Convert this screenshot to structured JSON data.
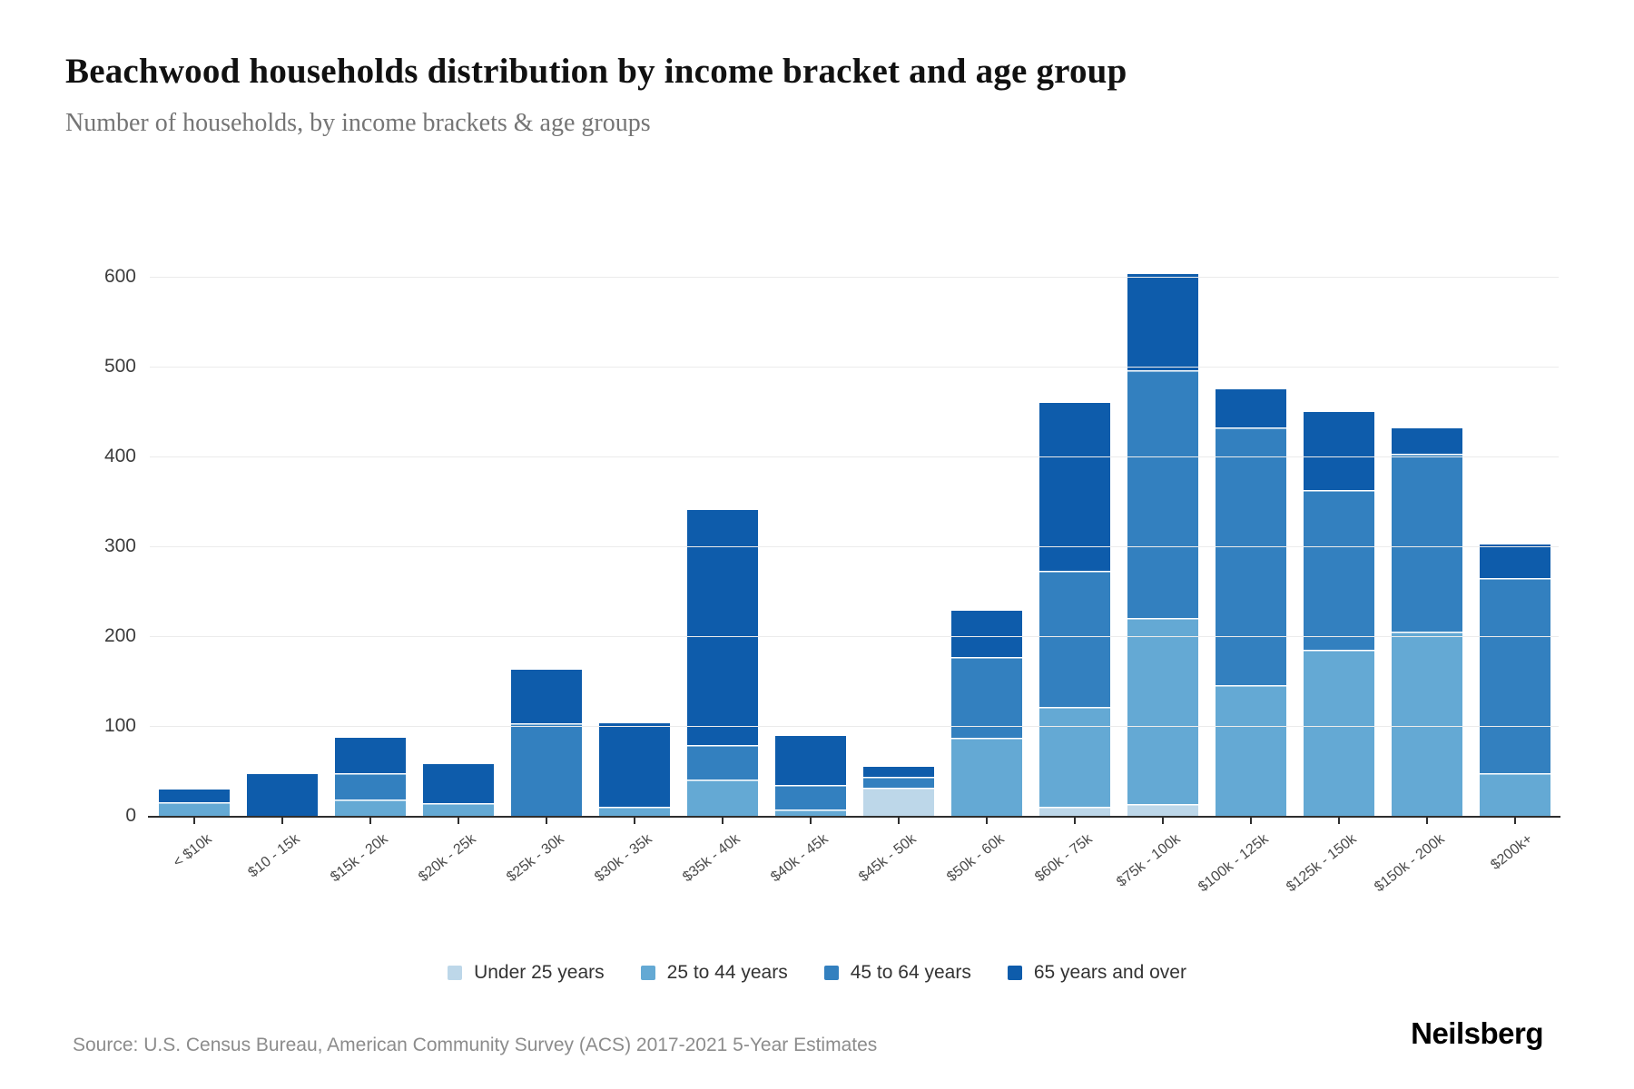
{
  "header": {
    "title": "Beachwood households distribution by income bracket and age group",
    "subtitle": "Number of households, by income brackets & age groups"
  },
  "footer": {
    "source": "Source: U.S. Census Bureau, American Community Survey (ACS) 2017-2021 5-Year Estimates",
    "brand": "Neilsberg"
  },
  "chart_data": {
    "type": "bar",
    "stacked": true,
    "title": "Beachwood households distribution by income bracket and age group",
    "subtitle": "Number of households, by income brackets & age groups",
    "xlabel": "",
    "ylabel": "",
    "ylim": [
      0,
      600
    ],
    "yticks": [
      0,
      100,
      200,
      300,
      400,
      500,
      600
    ],
    "grid": "horizontal",
    "legend_position": "bottom",
    "categories": [
      "< $10k",
      "$10 - 15k",
      "$15k - 20k",
      "$20k - 25k",
      "$25k - 30k",
      "$30k - 35k",
      "$35k - 40k",
      "$40k - 45k",
      "$45k - 50k",
      "$50k - 60k",
      "$60k - 75k",
      "$75k - 100k",
      "$100k - 125k",
      "$125k - 150k",
      "$150k - 200k",
      "$200k+"
    ],
    "series": [
      {
        "name": "Under 25 years",
        "color": "#bdd7e9",
        "values": [
          0,
          0,
          0,
          0,
          0,
          0,
          0,
          0,
          31,
          0,
          10,
          13,
          0,
          0,
          0,
          0
        ]
      },
      {
        "name": "25 to 44 years",
        "color": "#64a9d4",
        "values": [
          15,
          0,
          18,
          14,
          0,
          10,
          40,
          7,
          0,
          87,
          111,
          207,
          145,
          185,
          205,
          47
        ]
      },
      {
        "name": "45 to 64 years",
        "color": "#3380bf",
        "values": [
          0,
          0,
          30,
          0,
          103,
          0,
          39,
          27,
          12,
          90,
          152,
          276,
          287,
          178,
          198,
          218
        ]
      },
      {
        "name": "65 years and over",
        "color": "#0e5cab",
        "values": [
          14,
          46,
          39,
          44,
          60,
          93,
          261,
          55,
          12,
          51,
          187,
          107,
          43,
          87,
          28,
          37
        ]
      }
    ],
    "totals": [
      29,
      46,
      87,
      58,
      163,
      103,
      340,
      89,
      55,
      228,
      460,
      603,
      475,
      450,
      431,
      302
    ]
  }
}
